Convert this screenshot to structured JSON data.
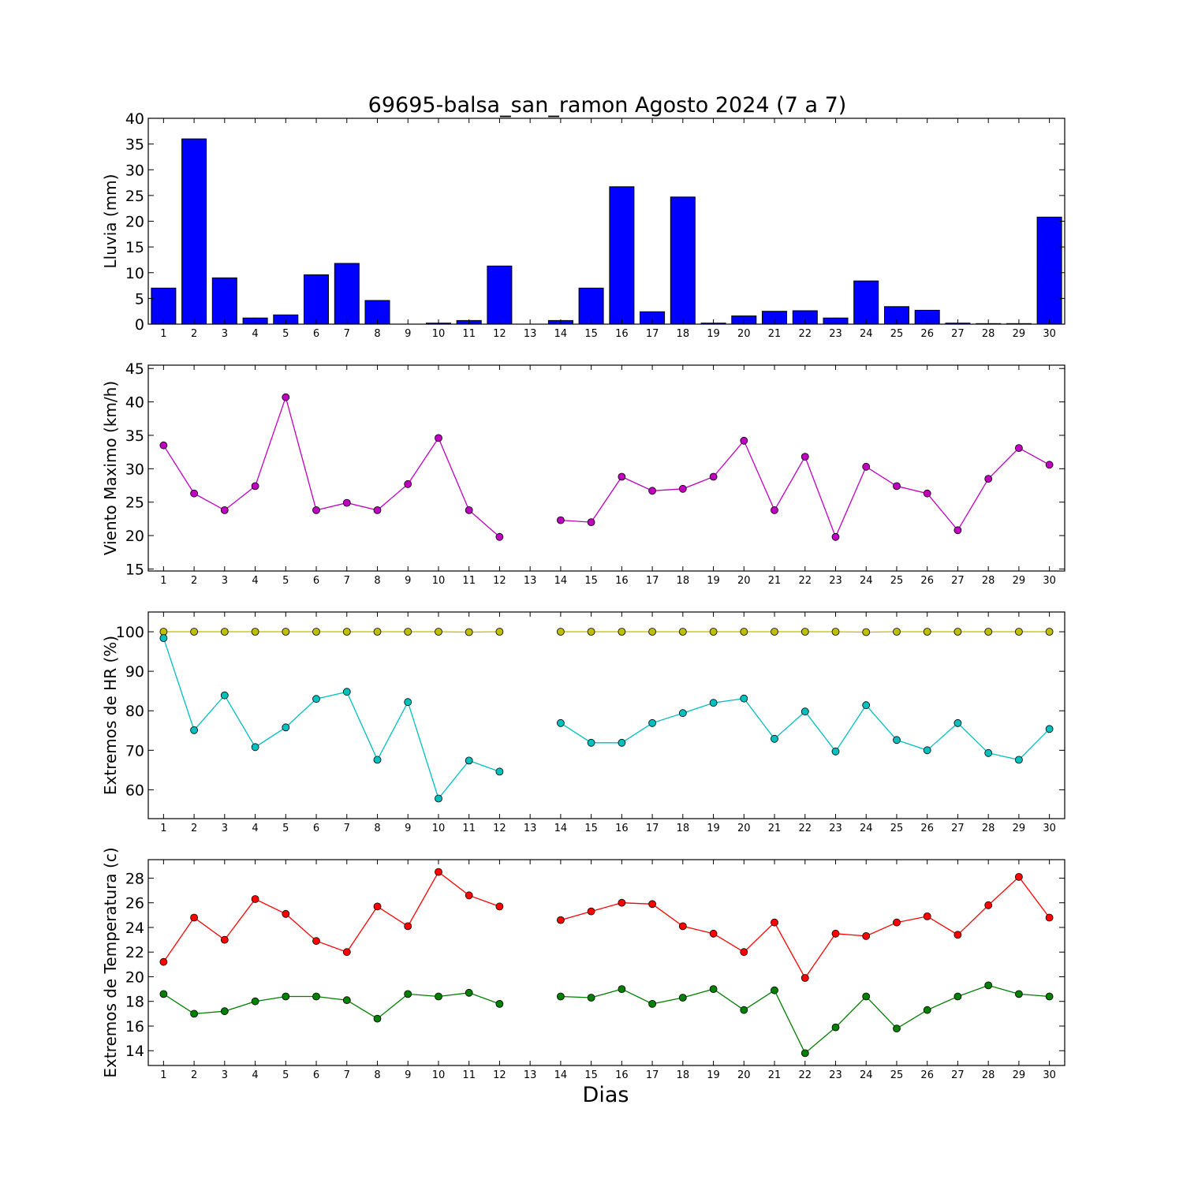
{
  "figure": {
    "title": "69695-balsa_san_ramon Agosto 2024  (7 a 7)",
    "xlabel": "Dias"
  },
  "chart_data": [
    {
      "type": "bar",
      "ylabel": "Lluvia (mm)",
      "ylim": [
        0,
        40
      ],
      "yticks": [
        0,
        5,
        10,
        15,
        20,
        25,
        30,
        35,
        40
      ],
      "xticks": [
        1,
        2,
        3,
        4,
        5,
        6,
        7,
        8,
        9,
        10,
        11,
        12,
        13,
        14,
        15,
        16,
        17,
        18,
        19,
        20,
        21,
        22,
        23,
        24,
        25,
        26,
        27,
        28,
        29,
        30
      ],
      "grid": false,
      "series": [
        {
          "color": "#0000ff",
          "x": [
            1,
            2,
            3,
            4,
            5,
            6,
            7,
            8,
            9,
            10,
            11,
            12,
            13,
            14,
            15,
            16,
            17,
            18,
            19,
            20,
            21,
            22,
            23,
            24,
            25,
            26,
            27,
            28,
            29,
            30
          ],
          "values": [
            7.0,
            36.0,
            9.0,
            1.2,
            1.8,
            9.6,
            11.8,
            4.6,
            0,
            0.2,
            0.7,
            11.3,
            null,
            0.7,
            7.0,
            26.7,
            2.4,
            24.7,
            0.2,
            1.6,
            2.5,
            2.6,
            1.2,
            8.4,
            3.4,
            2.7,
            0.2,
            0.1,
            0.1,
            20.8
          ]
        }
      ]
    },
    {
      "type": "line",
      "ylabel": "Viento Maximo (km/h)",
      "ylim": [
        14.7,
        45.5
      ],
      "yticks": [
        15,
        20,
        25,
        30,
        35,
        40,
        45
      ],
      "xticks": [
        1,
        2,
        3,
        4,
        5,
        6,
        7,
        8,
        9,
        10,
        11,
        12,
        13,
        14,
        15,
        16,
        17,
        18,
        19,
        20,
        21,
        22,
        23,
        24,
        25,
        26,
        27,
        28,
        29,
        30
      ],
      "grid": false,
      "series": [
        {
          "color": "#bf00bf",
          "x": [
            1,
            2,
            3,
            4,
            5,
            6,
            7,
            8,
            9,
            10,
            11,
            12,
            13,
            14,
            15,
            16,
            17,
            18,
            19,
            20,
            21,
            22,
            23,
            24,
            25,
            26,
            27,
            28,
            29,
            30
          ],
          "values": [
            33.5,
            26.3,
            23.8,
            27.4,
            40.7,
            23.8,
            24.9,
            23.8,
            27.7,
            34.6,
            23.8,
            19.8,
            null,
            22.3,
            22.0,
            28.8,
            26.7,
            27.0,
            28.8,
            34.2,
            23.8,
            31.8,
            19.8,
            30.3,
            27.4,
            26.3,
            20.8,
            28.5,
            33.1,
            30.6
          ]
        }
      ]
    },
    {
      "type": "line",
      "ylabel": "Extremos de HR (%)",
      "ylim": [
        52.7,
        105
      ],
      "yticks": [
        60,
        70,
        80,
        90,
        100
      ],
      "xticks": [
        1,
        2,
        3,
        4,
        5,
        6,
        7,
        8,
        9,
        10,
        11,
        12,
        13,
        14,
        15,
        16,
        17,
        18,
        19,
        20,
        21,
        22,
        23,
        24,
        25,
        26,
        27,
        28,
        29,
        30
      ],
      "grid": false,
      "series": [
        {
          "color": "#bfbf00",
          "x": [
            1,
            2,
            3,
            4,
            5,
            6,
            7,
            8,
            9,
            10,
            11,
            12,
            13,
            14,
            15,
            16,
            17,
            18,
            19,
            20,
            21,
            22,
            23,
            24,
            25,
            26,
            27,
            28,
            29,
            30
          ],
          "values": [
            100,
            100,
            100,
            100,
            100,
            100,
            100,
            100,
            100,
            100,
            99.9,
            100,
            null,
            100,
            100,
            100,
            100,
            100,
            100,
            100,
            100,
            100,
            100,
            99.9,
            100,
            100,
            100,
            100,
            100,
            100
          ]
        },
        {
          "color": "#00bfbf",
          "x": [
            1,
            2,
            3,
            4,
            5,
            6,
            7,
            8,
            9,
            10,
            11,
            12,
            13,
            14,
            15,
            16,
            17,
            18,
            19,
            20,
            21,
            22,
            23,
            24,
            25,
            26,
            27,
            28,
            29,
            30
          ],
          "values": [
            98.4,
            75.1,
            83.9,
            70.8,
            75.8,
            83.0,
            84.8,
            67.6,
            82.2,
            57.8,
            67.4,
            64.6,
            null,
            76.9,
            71.9,
            71.9,
            76.9,
            79.4,
            82.0,
            83.1,
            72.9,
            79.8,
            69.7,
            81.4,
            72.6,
            70.0,
            76.9,
            69.3,
            67.6,
            75.4
          ]
        }
      ]
    },
    {
      "type": "line",
      "ylabel": "Extremos de Temperatura (c)",
      "ylim": [
        12.8,
        29.5
      ],
      "yticks": [
        14,
        16,
        18,
        20,
        22,
        24,
        26,
        28
      ],
      "xticks": [
        1,
        2,
        3,
        4,
        5,
        6,
        7,
        8,
        9,
        10,
        11,
        12,
        13,
        14,
        15,
        16,
        17,
        18,
        19,
        20,
        21,
        22,
        23,
        24,
        25,
        26,
        27,
        28,
        29,
        30
      ],
      "grid": false,
      "series": [
        {
          "color": "#ff0000",
          "x": [
            1,
            2,
            3,
            4,
            5,
            6,
            7,
            8,
            9,
            10,
            11,
            12,
            13,
            14,
            15,
            16,
            17,
            18,
            19,
            20,
            21,
            22,
            23,
            24,
            25,
            26,
            27,
            28,
            29,
            30
          ],
          "values": [
            21.2,
            24.8,
            23.0,
            26.3,
            25.1,
            22.9,
            22.0,
            25.7,
            24.1,
            28.5,
            26.6,
            25.7,
            null,
            24.6,
            25.3,
            26.0,
            25.9,
            24.1,
            23.5,
            22.0,
            24.4,
            19.9,
            23.5,
            23.3,
            24.4,
            24.9,
            23.4,
            25.8,
            28.1,
            24.8
          ]
        },
        {
          "color": "#007f00",
          "x": [
            1,
            2,
            3,
            4,
            5,
            6,
            7,
            8,
            9,
            10,
            11,
            12,
            13,
            14,
            15,
            16,
            17,
            18,
            19,
            20,
            21,
            22,
            23,
            24,
            25,
            26,
            27,
            28,
            29,
            30
          ],
          "values": [
            18.6,
            17.0,
            17.2,
            18.0,
            18.4,
            18.4,
            18.1,
            16.6,
            18.6,
            18.4,
            18.7,
            17.8,
            null,
            18.4,
            18.3,
            19.0,
            17.8,
            18.3,
            19.0,
            17.3,
            18.9,
            13.8,
            15.9,
            18.4,
            15.8,
            17.3,
            18.4,
            19.3,
            18.6,
            18.4
          ]
        }
      ]
    }
  ]
}
